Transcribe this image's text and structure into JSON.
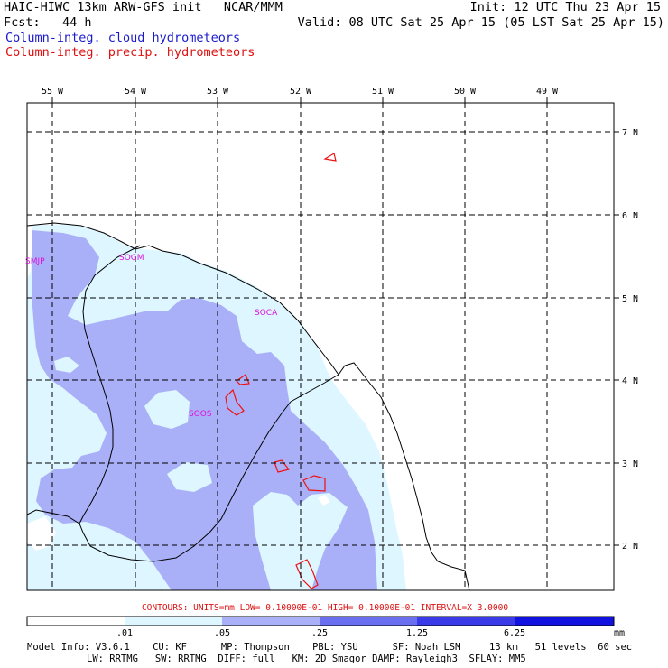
{
  "header": {
    "model_line": "HAIC-HIWC 13km ARW-GFS init   NCAR/MMM",
    "fcst_line": "Fcst:   44 h",
    "init_line": "Init: 12 UTC Thu 23 Apr 15",
    "valid_line": "Valid: 08 UTC Sat 25 Apr 15 (05 LST Sat 25 Apr 15)",
    "field1": "Column-integ. cloud hydrometeors",
    "field2": "Column-integ. precip. hydrometeors"
  },
  "map": {
    "lon_labels": [
      "55 W",
      "54 W",
      "53 W",
      "52 W",
      "51 W",
      "50 W",
      "49 W"
    ],
    "lat_labels": [
      "7 N",
      "6 N",
      "5 N",
      "4 N",
      "3 N",
      "2 N"
    ],
    "stations": [
      "SMJP",
      "SOGM",
      "SOCA",
      "SOOS"
    ]
  },
  "contours_line": "CONTOURS:  UNITS=mm  LOW= 0.10000E-01  HIGH= 0.10000E-01  INTERVAL=X  3.0000",
  "colorbar": {
    "units": "mm",
    "ticks": [
      ".01",
      ".05",
      ".25",
      "1.25",
      "6.25"
    ],
    "colors": [
      "#ffffff",
      "#ddf6ff",
      "#aab0f8",
      "#6a6ef0",
      "#3a3ae8",
      "#1212e0"
    ]
  },
  "footer": {
    "line1": "Model Info: V3.6.1    CU: KF      MP: Thompson    PBL: YSU      SF: Noah LSM     13 km   51 levels  60 sec",
    "line2": "LW: RRTMG   SW: RRTMG  DIFF: full   KM: 2D Smagor DAMP: Rayleigh3  SFLAY: MM5"
  },
  "colors": {
    "cloud_label": "#1a1acc",
    "precip_label": "#dd1111",
    "station": "#dd11dd",
    "contour_red": "#ee1111"
  }
}
